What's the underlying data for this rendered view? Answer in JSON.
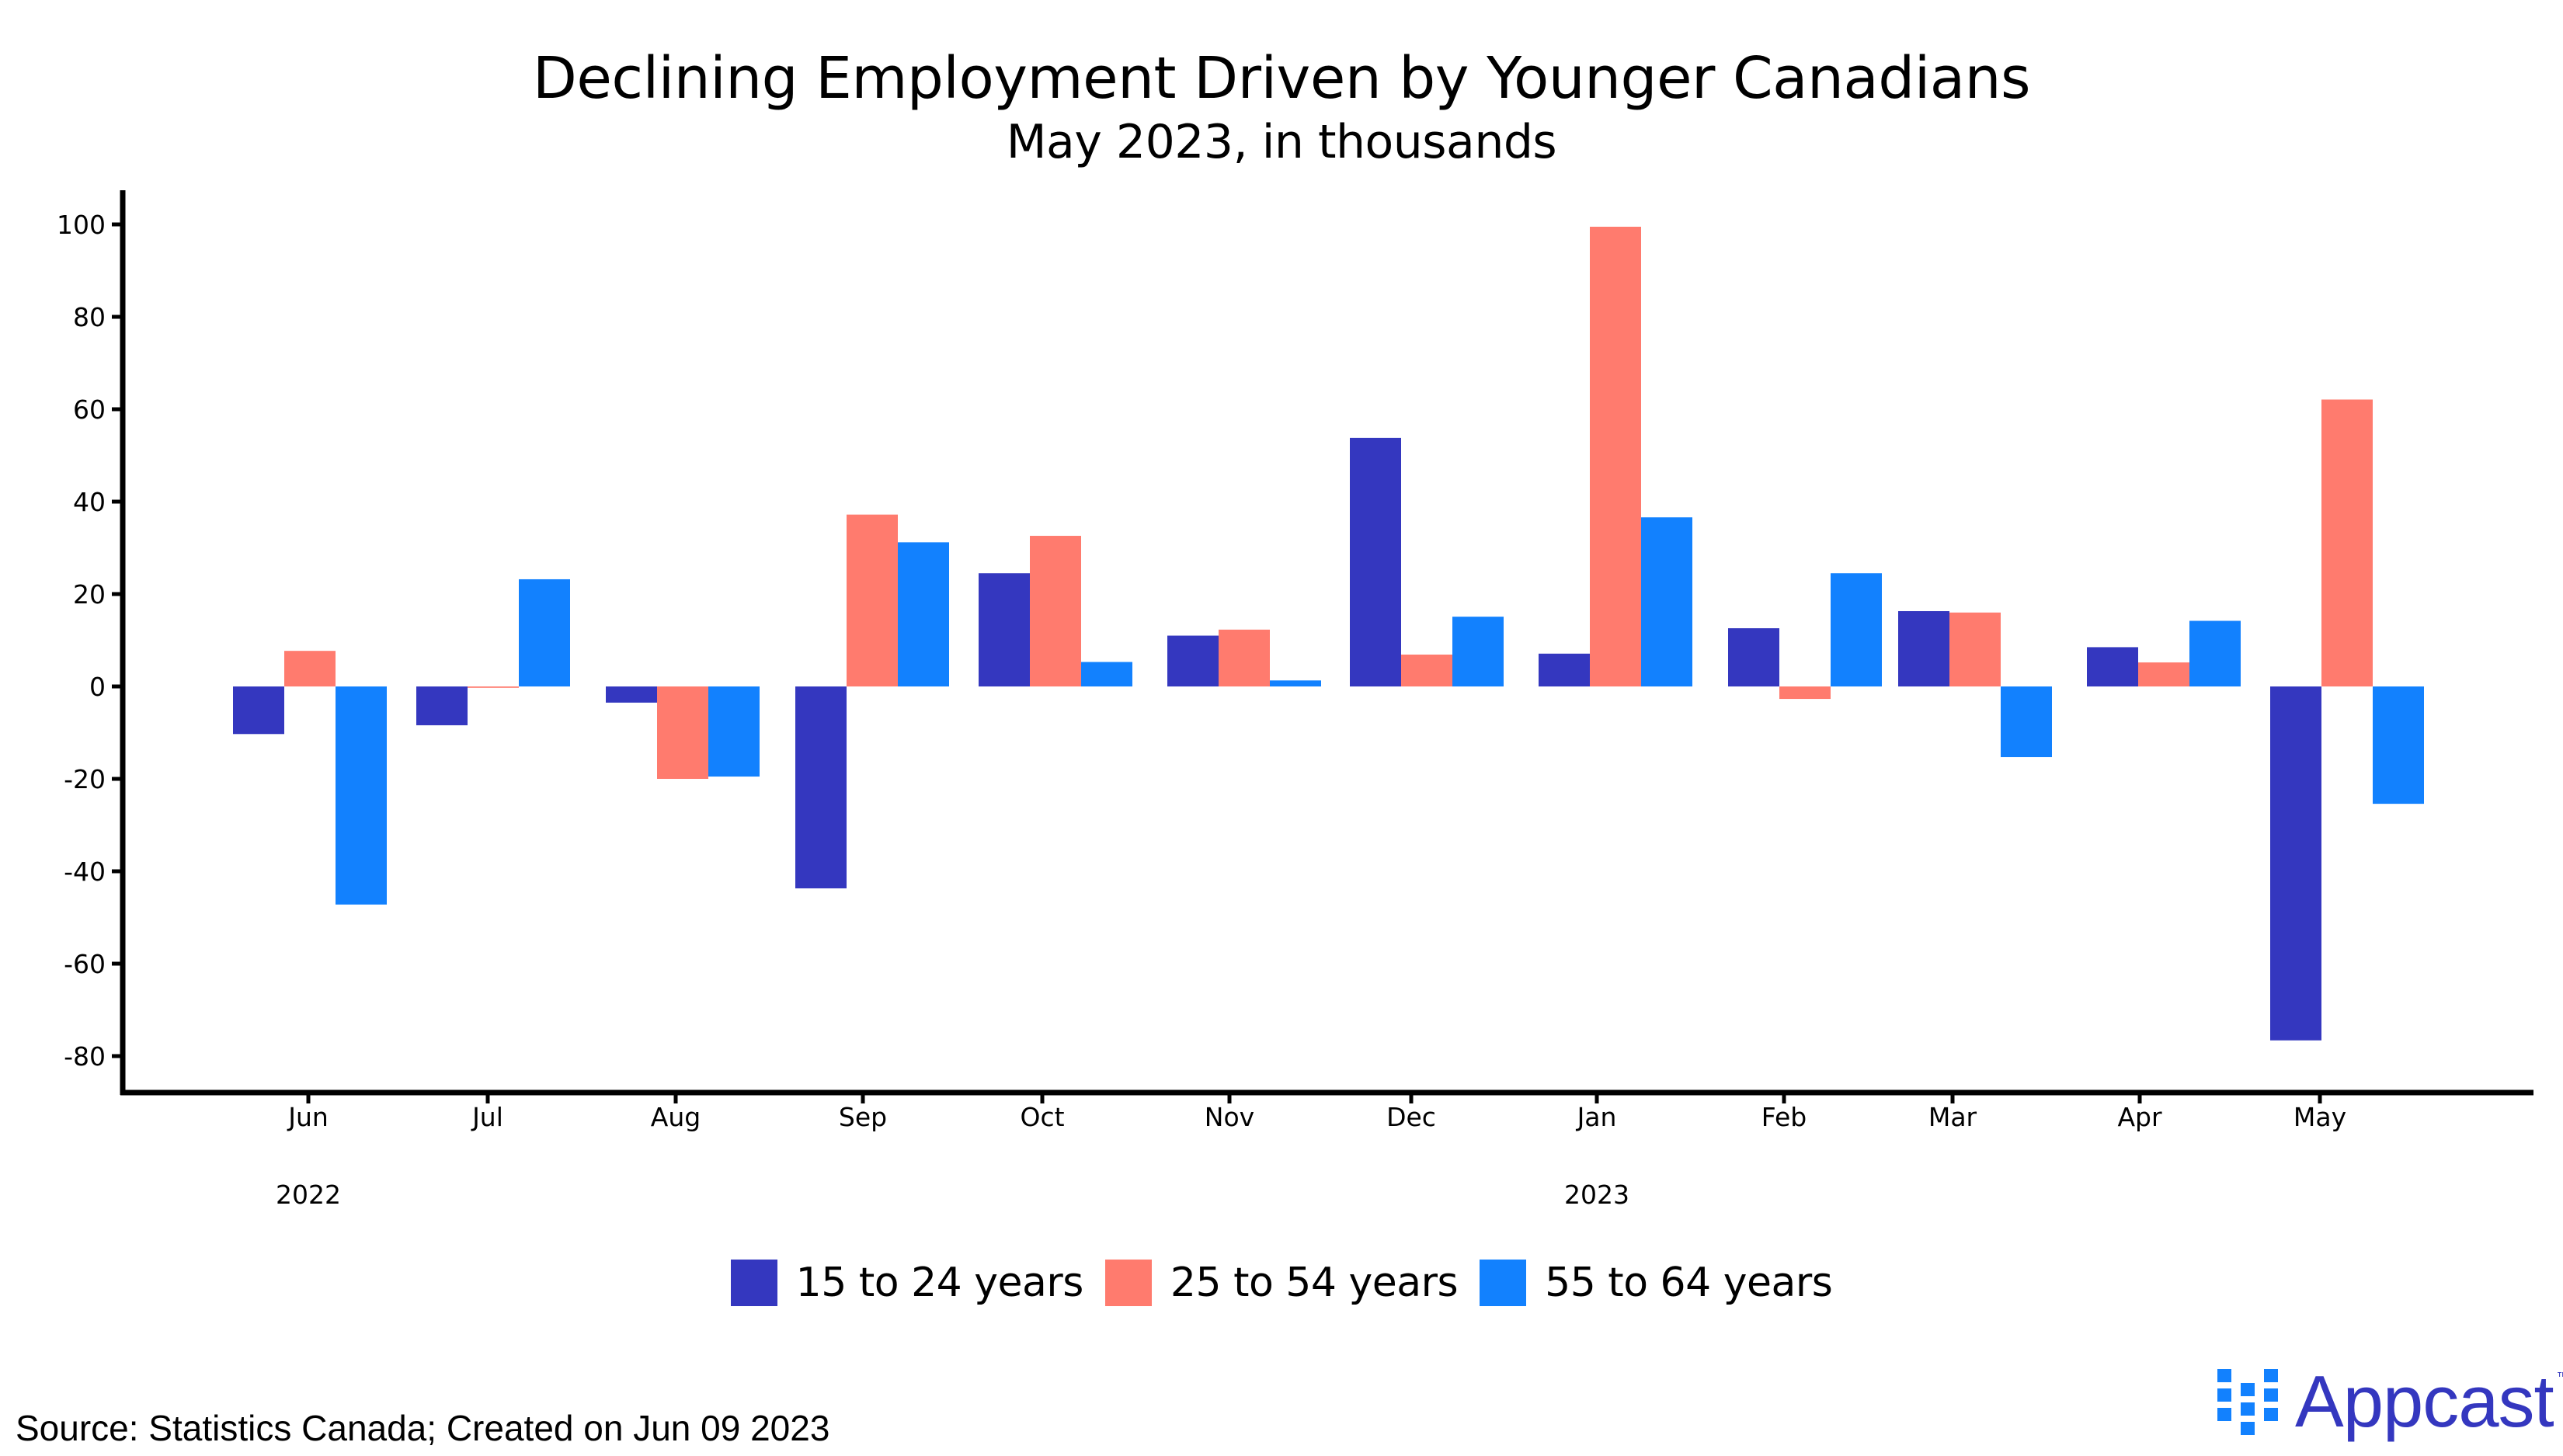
{
  "chart_data": {
    "type": "bar",
    "title": "Declining Employment Driven by Younger Canadians",
    "subtitle": "May 2023, in thousands",
    "xlabel": "",
    "ylabel": "",
    "categories": [
      "Jun",
      "Jul",
      "Aug",
      "Sep",
      "Oct",
      "Nov",
      "Dec",
      "Jan",
      "Feb",
      "Mar",
      "Apr",
      "May"
    ],
    "year_labels": [
      {
        "label": "2022",
        "category": "Jun"
      },
      {
        "label": "2023",
        "category": "Jan"
      }
    ],
    "series": [
      {
        "name": "15 to 24 years",
        "color": "#3437BF",
        "values": [
          -10.3,
          -8.4,
          -3.5,
          -43.7,
          24.5,
          11.0,
          53.8,
          7.1,
          12.6,
          16.3,
          8.5,
          -76.6
        ]
      },
      {
        "name": "25 to 54 years",
        "color": "#FF7B6E",
        "values": [
          7.7,
          -0.3,
          -20.0,
          37.2,
          32.6,
          12.3,
          6.9,
          99.5,
          -2.7,
          16.0,
          5.2,
          62.1
        ]
      },
      {
        "name": "55 to 64 years",
        "color": "#1281FE",
        "values": [
          -47.2,
          23.2,
          -19.5,
          31.2,
          5.3,
          1.3,
          15.1,
          36.6,
          24.5,
          -15.3,
          14.2,
          -25.4
        ]
      }
    ],
    "yticks": [
      100,
      80,
      60,
      40,
      20,
      0,
      -20,
      -40,
      -60,
      -80
    ],
    "ylim": [
      -86,
      105
    ],
    "grid": false,
    "legend_position": "bottom"
  },
  "footer": {
    "source": "Source: Statistics Canada; Created on Jun 09 2023"
  },
  "logo": {
    "name": "Appcast",
    "trademark": "™",
    "mark_color": "#1281FE",
    "text_color": "#3437BF"
  }
}
